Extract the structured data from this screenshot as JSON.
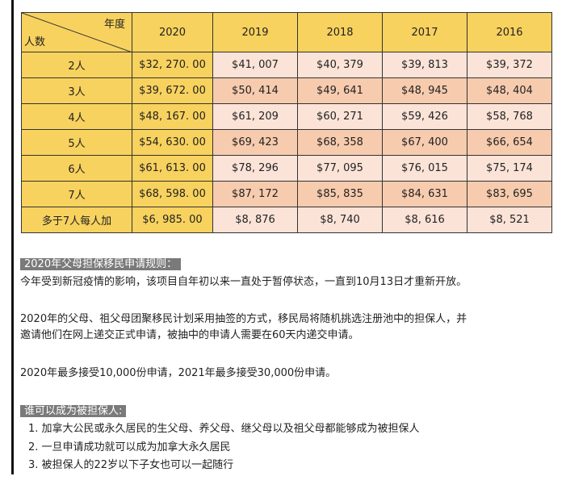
{
  "table": {
    "corner_top": "年度",
    "corner_bottom": "人数",
    "years": [
      "2020",
      "2019",
      "2018",
      "2017",
      "2016"
    ],
    "rows": [
      {
        "label": "2人",
        "values": [
          "$32, 270. 00",
          "$41, 007",
          "$40, 379",
          "$39, 813",
          "$39, 372"
        ]
      },
      {
        "label": "3人",
        "values": [
          "$39, 672. 00",
          "$50, 414",
          "$49, 641",
          "$48, 945",
          "$48, 404"
        ]
      },
      {
        "label": "4人",
        "values": [
          "$48, 167. 00",
          "$61, 209",
          "$60, 271",
          "$59, 426",
          "$58, 768"
        ]
      },
      {
        "label": "5人",
        "values": [
          "$54, 630. 00",
          "$69, 423",
          "$68, 358",
          "$67, 400",
          "$66, 654"
        ]
      },
      {
        "label": "6人",
        "values": [
          "$61, 613. 00",
          "$78, 296",
          "$77, 095",
          "$76, 015",
          "$75, 174"
        ]
      },
      {
        "label": "7人",
        "values": [
          "$68, 598. 00",
          "$87, 172",
          "$85, 835",
          "$84, 631",
          "$83, 695"
        ]
      },
      {
        "label": "多于7人每人加",
        "values": [
          "$6, 985. 00",
          "$8, 876",
          "$8, 740",
          "$8, 616",
          "$8, 521"
        ]
      }
    ]
  },
  "section1": {
    "heading": "2020年父母担保移民申请规则：",
    "p1": "今年受到新冠疫情的影响，该项目自年初以来一直处于暂停状态，一直到10月13日才重新开放。",
    "p2a": "2020年的父母、祖父母团聚移民计划采用抽签的方式，移民局将随机挑选注册池中的担保人，并",
    "p2b": "邀请他们在网上递交正式申请，被抽中的申请人需要在60天内递交申请。",
    "p3": "2020年最多接受10,000份申请，2021年最多接受30,000份申请。"
  },
  "section2": {
    "heading": "谁可以成为被担保人:",
    "items": [
      "1. 加拿大公民或永久居民的生父母、养父母、继父母以及祖父母都能够成为被担保人",
      "2. 一旦申请成功就可以成为加拿大永久居民",
      "3. 被担保人的22岁以下子女也可以一起随行"
    ]
  }
}
